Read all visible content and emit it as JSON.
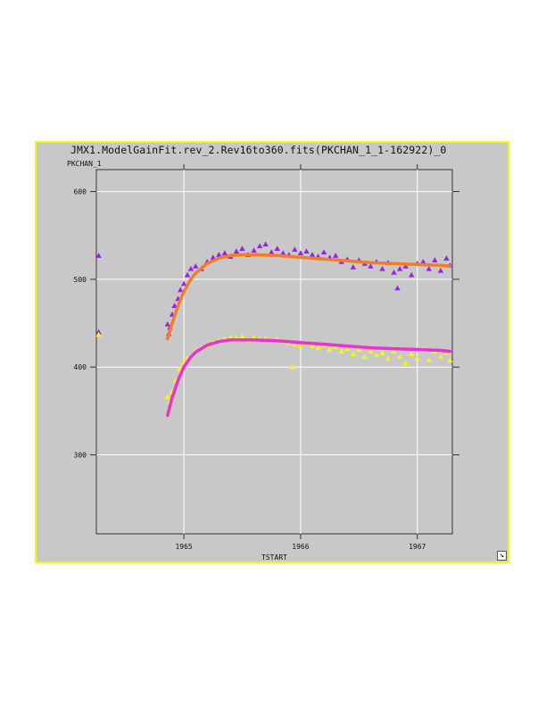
{
  "window": {
    "title": "JMX1.ModelGainFit.rev_2.Rev16to360.fits(PKCHAN_1_1-162922)_0",
    "frame_color": "#f5f516",
    "resize_icon": "resize-arrow-icon"
  },
  "chart_data": {
    "type": "scatter",
    "xlabel": "TSTART",
    "ylabel": "PKCHAN_1",
    "xlim": [
      1964.25,
      1967.3
    ],
    "ylim": [
      210,
      625
    ],
    "xticks": [
      1965,
      1966,
      1967
    ],
    "xtick_labels": [
      "1965",
      "1966",
      "1967"
    ],
    "yticks": [
      300,
      400,
      500,
      600
    ],
    "ytick_labels": [
      "300",
      "400",
      "500",
      "600"
    ],
    "grid": true,
    "series": [
      {
        "kind": "points",
        "color": "#9b1ff0",
        "marker": "triangle",
        "x": [
          1964.27,
          1964.27,
          1964.86,
          1964.87,
          1964.88,
          1964.9,
          1964.92,
          1964.95,
          1964.97,
          1965.0,
          1965.03,
          1965.06,
          1965.1,
          1965.15,
          1965.2,
          1965.25,
          1965.3,
          1965.35,
          1965.4,
          1965.45,
          1965.5,
          1965.55,
          1965.6,
          1965.65,
          1965.7,
          1965.75,
          1965.8,
          1965.85,
          1965.9,
          1965.95,
          1966.0,
          1966.05,
          1966.1,
          1966.15,
          1966.2,
          1966.25,
          1966.3,
          1966.35,
          1966.4,
          1966.45,
          1966.5,
          1966.55,
          1966.6,
          1966.65,
          1966.7,
          1966.75,
          1966.8,
          1966.83,
          1966.85,
          1966.9,
          1966.95,
          1967.0,
          1967.05,
          1967.1,
          1967.15,
          1967.2,
          1967.25,
          1967.28
        ],
        "y": [
          527,
          440,
          449,
          438,
          445,
          460,
          470,
          478,
          488,
          495,
          505,
          512,
          515,
          512,
          520,
          525,
          528,
          530,
          526,
          532,
          535,
          528,
          533,
          538,
          540,
          531,
          535,
          530,
          528,
          534,
          530,
          532,
          528,
          526,
          531,
          525,
          527,
          520,
          523,
          514,
          522,
          518,
          515,
          520,
          512,
          519,
          508,
          490,
          512,
          515,
          505,
          518,
          520,
          512,
          522,
          510,
          524,
          516
        ]
      },
      {
        "kind": "points",
        "color": "#f5f516",
        "marker": "triangle",
        "x": [
          1964.27,
          1964.86,
          1964.87,
          1964.88,
          1964.9,
          1964.93,
          1964.96,
          1965.0,
          1965.03,
          1965.06,
          1965.1,
          1965.15,
          1965.2,
          1965.25,
          1965.3,
          1965.35,
          1965.4,
          1965.45,
          1965.5,
          1965.55,
          1965.6,
          1965.65,
          1965.7,
          1965.75,
          1965.8,
          1965.85,
          1965.9,
          1965.93,
          1965.95,
          1966.0,
          1966.05,
          1966.1,
          1966.15,
          1966.2,
          1966.25,
          1966.3,
          1966.35,
          1966.4,
          1966.45,
          1966.5,
          1966.55,
          1966.6,
          1966.65,
          1966.7,
          1966.75,
          1966.8,
          1966.85,
          1966.9,
          1966.95,
          1967.0,
          1967.05,
          1967.1,
          1967.15,
          1967.2,
          1967.25,
          1967.28
        ],
        "y": [
          437,
          366,
          350,
          360,
          372,
          385,
          398,
          405,
          410,
          412,
          418,
          422,
          425,
          428,
          430,
          432,
          434,
          433,
          435,
          431,
          434,
          432,
          433,
          430,
          432,
          430,
          428,
          400,
          426,
          425,
          428,
          424,
          422,
          425,
          420,
          423,
          418,
          421,
          415,
          420,
          412,
          418,
          414,
          416,
          410,
          418,
          412,
          405,
          415,
          410,
          420,
          408,
          418,
          412,
          416,
          408
        ]
      },
      {
        "kind": "line",
        "color": "#f27d22",
        "x": [
          1964.86,
          1964.9,
          1964.95,
          1965.0,
          1965.05,
          1965.1,
          1965.2,
          1965.3,
          1965.4,
          1965.5,
          1965.6,
          1965.8,
          1966.0,
          1966.2,
          1966.4,
          1966.6,
          1966.8,
          1967.0,
          1967.2,
          1967.28
        ],
        "y": [
          432,
          450,
          470,
          486,
          498,
          507,
          518,
          524,
          527,
          528,
          528,
          527,
          525,
          523,
          521,
          519,
          518,
          517,
          516,
          515
        ]
      },
      {
        "kind": "line",
        "color": "#ee2fd2",
        "x": [
          1964.86,
          1964.9,
          1964.95,
          1965.0,
          1965.05,
          1965.1,
          1965.2,
          1965.3,
          1965.4,
          1965.5,
          1965.6,
          1965.8,
          1966.0,
          1966.2,
          1966.4,
          1966.6,
          1966.8,
          1967.0,
          1967.2,
          1967.28
        ],
        "y": [
          345,
          365,
          385,
          400,
          410,
          417,
          425,
          429,
          431,
          431,
          431,
          430,
          428,
          426,
          424,
          422,
          421,
          420,
          419,
          418
        ]
      }
    ]
  }
}
